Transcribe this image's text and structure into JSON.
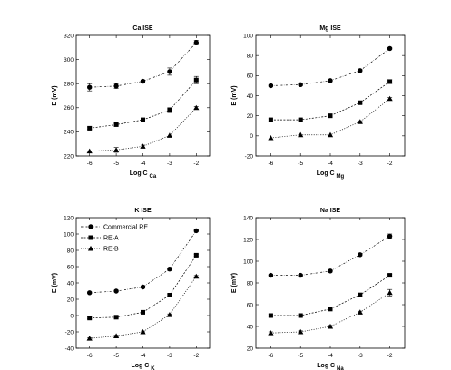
{
  "chart_data": [
    {
      "type": "line",
      "title": "Ca ISE",
      "xlabel": "Log C",
      "xlabel_sub": "Ca",
      "ylabel": "E (mV)",
      "x": [
        -6,
        -5,
        -4,
        -3,
        -2
      ],
      "xlim": [
        -6.5,
        -1.5
      ],
      "ylim": [
        220,
        320
      ],
      "yticks": [
        220,
        240,
        260,
        280,
        300,
        320
      ],
      "series": [
        {
          "marker": "circle",
          "values": [
            277,
            278,
            282,
            290,
            314
          ],
          "err": [
            3,
            2,
            1,
            3,
            2
          ]
        },
        {
          "marker": "square",
          "values": [
            243,
            246,
            250,
            258,
            283
          ],
          "err": [
            1,
            1,
            1,
            2,
            3
          ]
        },
        {
          "marker": "triangle",
          "values": [
            224,
            225,
            228,
            237,
            260
          ],
          "err": [
            0,
            2,
            1,
            0,
            1
          ]
        }
      ]
    },
    {
      "type": "line",
      "title": "Mg ISE",
      "xlabel": "Log C",
      "xlabel_sub": "Mg",
      "ylabel": "E (mV)",
      "x": [
        -6,
        -5,
        -4,
        -3,
        -2
      ],
      "xlim": [
        -6.5,
        -1.5
      ],
      "ylim": [
        -20,
        100
      ],
      "yticks": [
        -20,
        0,
        20,
        40,
        60,
        80,
        100
      ],
      "series": [
        {
          "marker": "circle",
          "values": [
            50,
            51,
            55,
            65,
            87
          ],
          "err": [
            1,
            1,
            1,
            1,
            1
          ]
        },
        {
          "marker": "square",
          "values": [
            16,
            16,
            20,
            33,
            54
          ],
          "err": [
            1,
            1,
            1,
            1,
            2
          ]
        },
        {
          "marker": "triangle",
          "values": [
            -2,
            1,
            1,
            14,
            37
          ],
          "err": [
            0,
            0,
            0,
            1,
            1
          ]
        }
      ]
    },
    {
      "type": "line",
      "title": "K ISE",
      "xlabel": "Log C",
      "xlabel_sub": "K",
      "ylabel": "E (mV)",
      "x": [
        -6,
        -5,
        -4,
        -3,
        -2
      ],
      "xlim": [
        -6.5,
        -1.5
      ],
      "ylim": [
        -40,
        120
      ],
      "yticks": [
        -40,
        -20,
        0,
        20,
        40,
        60,
        80,
        100,
        120
      ],
      "legend": [
        "Commercial RE",
        "RE-A",
        "RE-B"
      ],
      "legend_position": "top-left",
      "series": [
        {
          "name": "Commercial RE",
          "marker": "circle",
          "values": [
            28,
            30,
            35,
            57,
            104
          ],
          "err": [
            1,
            1,
            1,
            1,
            1
          ]
        },
        {
          "name": "RE-A",
          "marker": "square",
          "values": [
            -3,
            -2,
            4,
            25,
            74
          ],
          "err": [
            1,
            1,
            1,
            1,
            1
          ]
        },
        {
          "name": "RE-B",
          "marker": "triangle",
          "values": [
            -28,
            -25,
            -20,
            1,
            48
          ],
          "err": [
            1,
            1,
            1,
            1,
            1
          ]
        }
      ]
    },
    {
      "type": "line",
      "title": "Na ISE",
      "xlabel": "Log C",
      "xlabel_sub": "Na",
      "ylabel": "E (mV)",
      "x": [
        -6,
        -5,
        -4,
        -3,
        -2
      ],
      "xlim": [
        -6.5,
        -1.5
      ],
      "ylim": [
        20,
        140
      ],
      "yticks": [
        20,
        40,
        60,
        80,
        100,
        120,
        140
      ],
      "series": [
        {
          "marker": "circle",
          "values": [
            87,
            87,
            91,
            106,
            123
          ],
          "err": [
            1,
            1,
            1,
            1,
            2
          ]
        },
        {
          "marker": "square",
          "values": [
            50,
            50,
            56,
            69,
            87
          ],
          "err": [
            1,
            1,
            1,
            1,
            1
          ]
        },
        {
          "marker": "triangle",
          "values": [
            34,
            35,
            40,
            53,
            71
          ],
          "err": [
            1,
            1,
            1,
            1,
            3
          ]
        }
      ]
    }
  ]
}
